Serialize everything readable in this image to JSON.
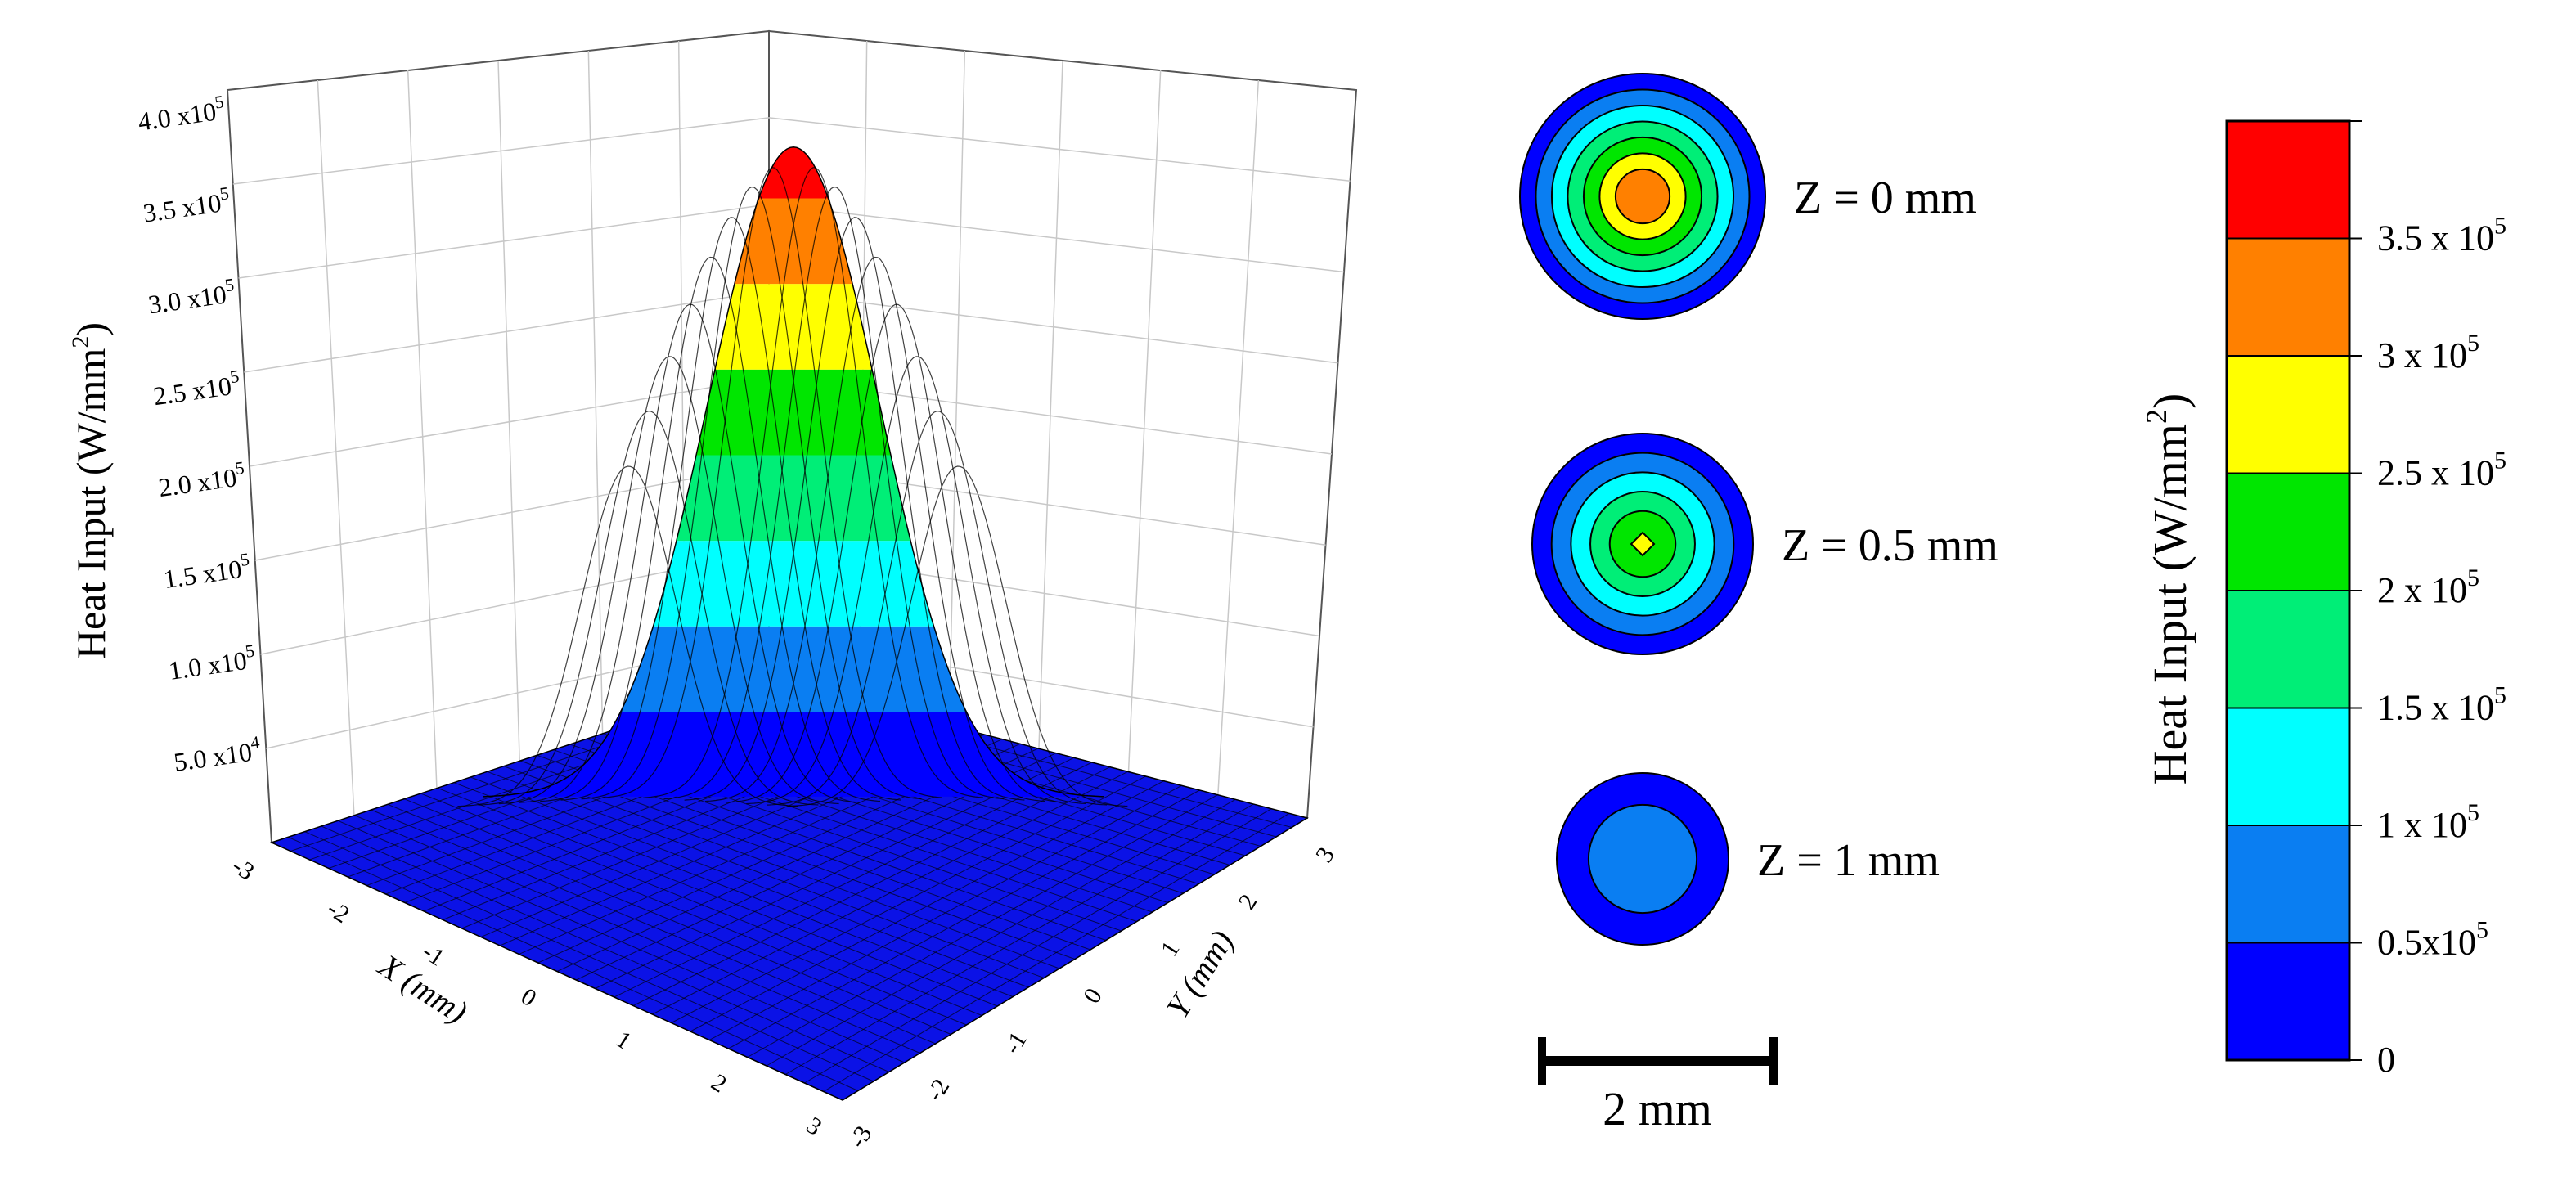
{
  "chart_data": [
    {
      "type": "surface3d",
      "title": "",
      "zlabel": "Heat Input (W/mm",
      "zlabel_sup": "2",
      "zlabel_close": ")",
      "xlabel": "X (mm)",
      "ylabel": "Y (mm)",
      "xlim": [
        -3,
        3
      ],
      "ylim": [
        -3,
        3
      ],
      "zlim": [
        0,
        400000
      ],
      "x_ticks": [
        "-3",
        "-2",
        "-1",
        "0",
        "1",
        "2",
        "3"
      ],
      "y_ticks": [
        "-3",
        "-2",
        "-1",
        "0",
        "1",
        "2",
        "3"
      ],
      "z_ticks": [
        {
          "mant": "5.0",
          "exp": "4"
        },
        {
          "mant": "1.0",
          "exp": "5"
        },
        {
          "mant": "1.5",
          "exp": "5"
        },
        {
          "mant": "2.0",
          "exp": "5"
        },
        {
          "mant": "2.5",
          "exp": "5"
        },
        {
          "mant": "3.0",
          "exp": "5"
        },
        {
          "mant": "3.5",
          "exp": "5"
        },
        {
          "mant": "4.0",
          "exp": "5"
        }
      ],
      "z_tick_values": [
        50000,
        100000,
        150000,
        200000,
        250000,
        300000,
        350000,
        400000
      ],
      "peak_value": 380000,
      "grid": true
    },
    {
      "type": "contour_slices",
      "slices": [
        {
          "label": "Z = 0 mm",
          "levels": [
            0.5,
            1.0,
            1.5,
            2.0,
            2.5,
            3.0,
            3.5
          ]
        },
        {
          "label": "Z = 0.5 mm",
          "levels": [
            0.5,
            1.0,
            1.5,
            2.0,
            2.5
          ]
        },
        {
          "label": "Z = 1 mm",
          "levels": [
            0.5,
            1.0
          ]
        }
      ],
      "scale_bar": {
        "label": "2 mm",
        "length_mm": 2
      }
    },
    {
      "type": "colorbar",
      "label": "Heat Input (W/mm",
      "label_sup": "2",
      "label_close": ")",
      "bands": [
        {
          "from": 0,
          "to": 0.5,
          "color": "#0000ff"
        },
        {
          "from": 0.5,
          "to": 1.0,
          "color": "#0a7ef2"
        },
        {
          "from": 1.0,
          "to": 1.5,
          "color": "#00ffff"
        },
        {
          "from": 1.5,
          "to": 2.0,
          "color": "#00ee77"
        },
        {
          "from": 2.0,
          "to": 2.5,
          "color": "#00e600"
        },
        {
          "from": 2.5,
          "to": 3.0,
          "color": "#ffff00"
        },
        {
          "from": 3.0,
          "to": 3.5,
          "color": "#ff8000"
        },
        {
          "from": 3.5,
          "to": 4.0,
          "color": "#ff0000"
        }
      ],
      "ticks": [
        {
          "value": 0,
          "mant": "0",
          "exp": ""
        },
        {
          "value": 0.5,
          "mant": "0.5x10",
          "exp": "5"
        },
        {
          "value": 1.0,
          "mant": "1 x 10",
          "exp": "5"
        },
        {
          "value": 1.5,
          "mant": "1.5 x 10",
          "exp": "5"
        },
        {
          "value": 2.0,
          "mant": "2 x 10",
          "exp": "5"
        },
        {
          "value": 2.5,
          "mant": "2.5 x 10",
          "exp": "5"
        },
        {
          "value": 3.0,
          "mant": "3 x 10",
          "exp": "5"
        },
        {
          "value": 3.5,
          "mant": "3.5 x 10",
          "exp": "5"
        }
      ]
    }
  ]
}
